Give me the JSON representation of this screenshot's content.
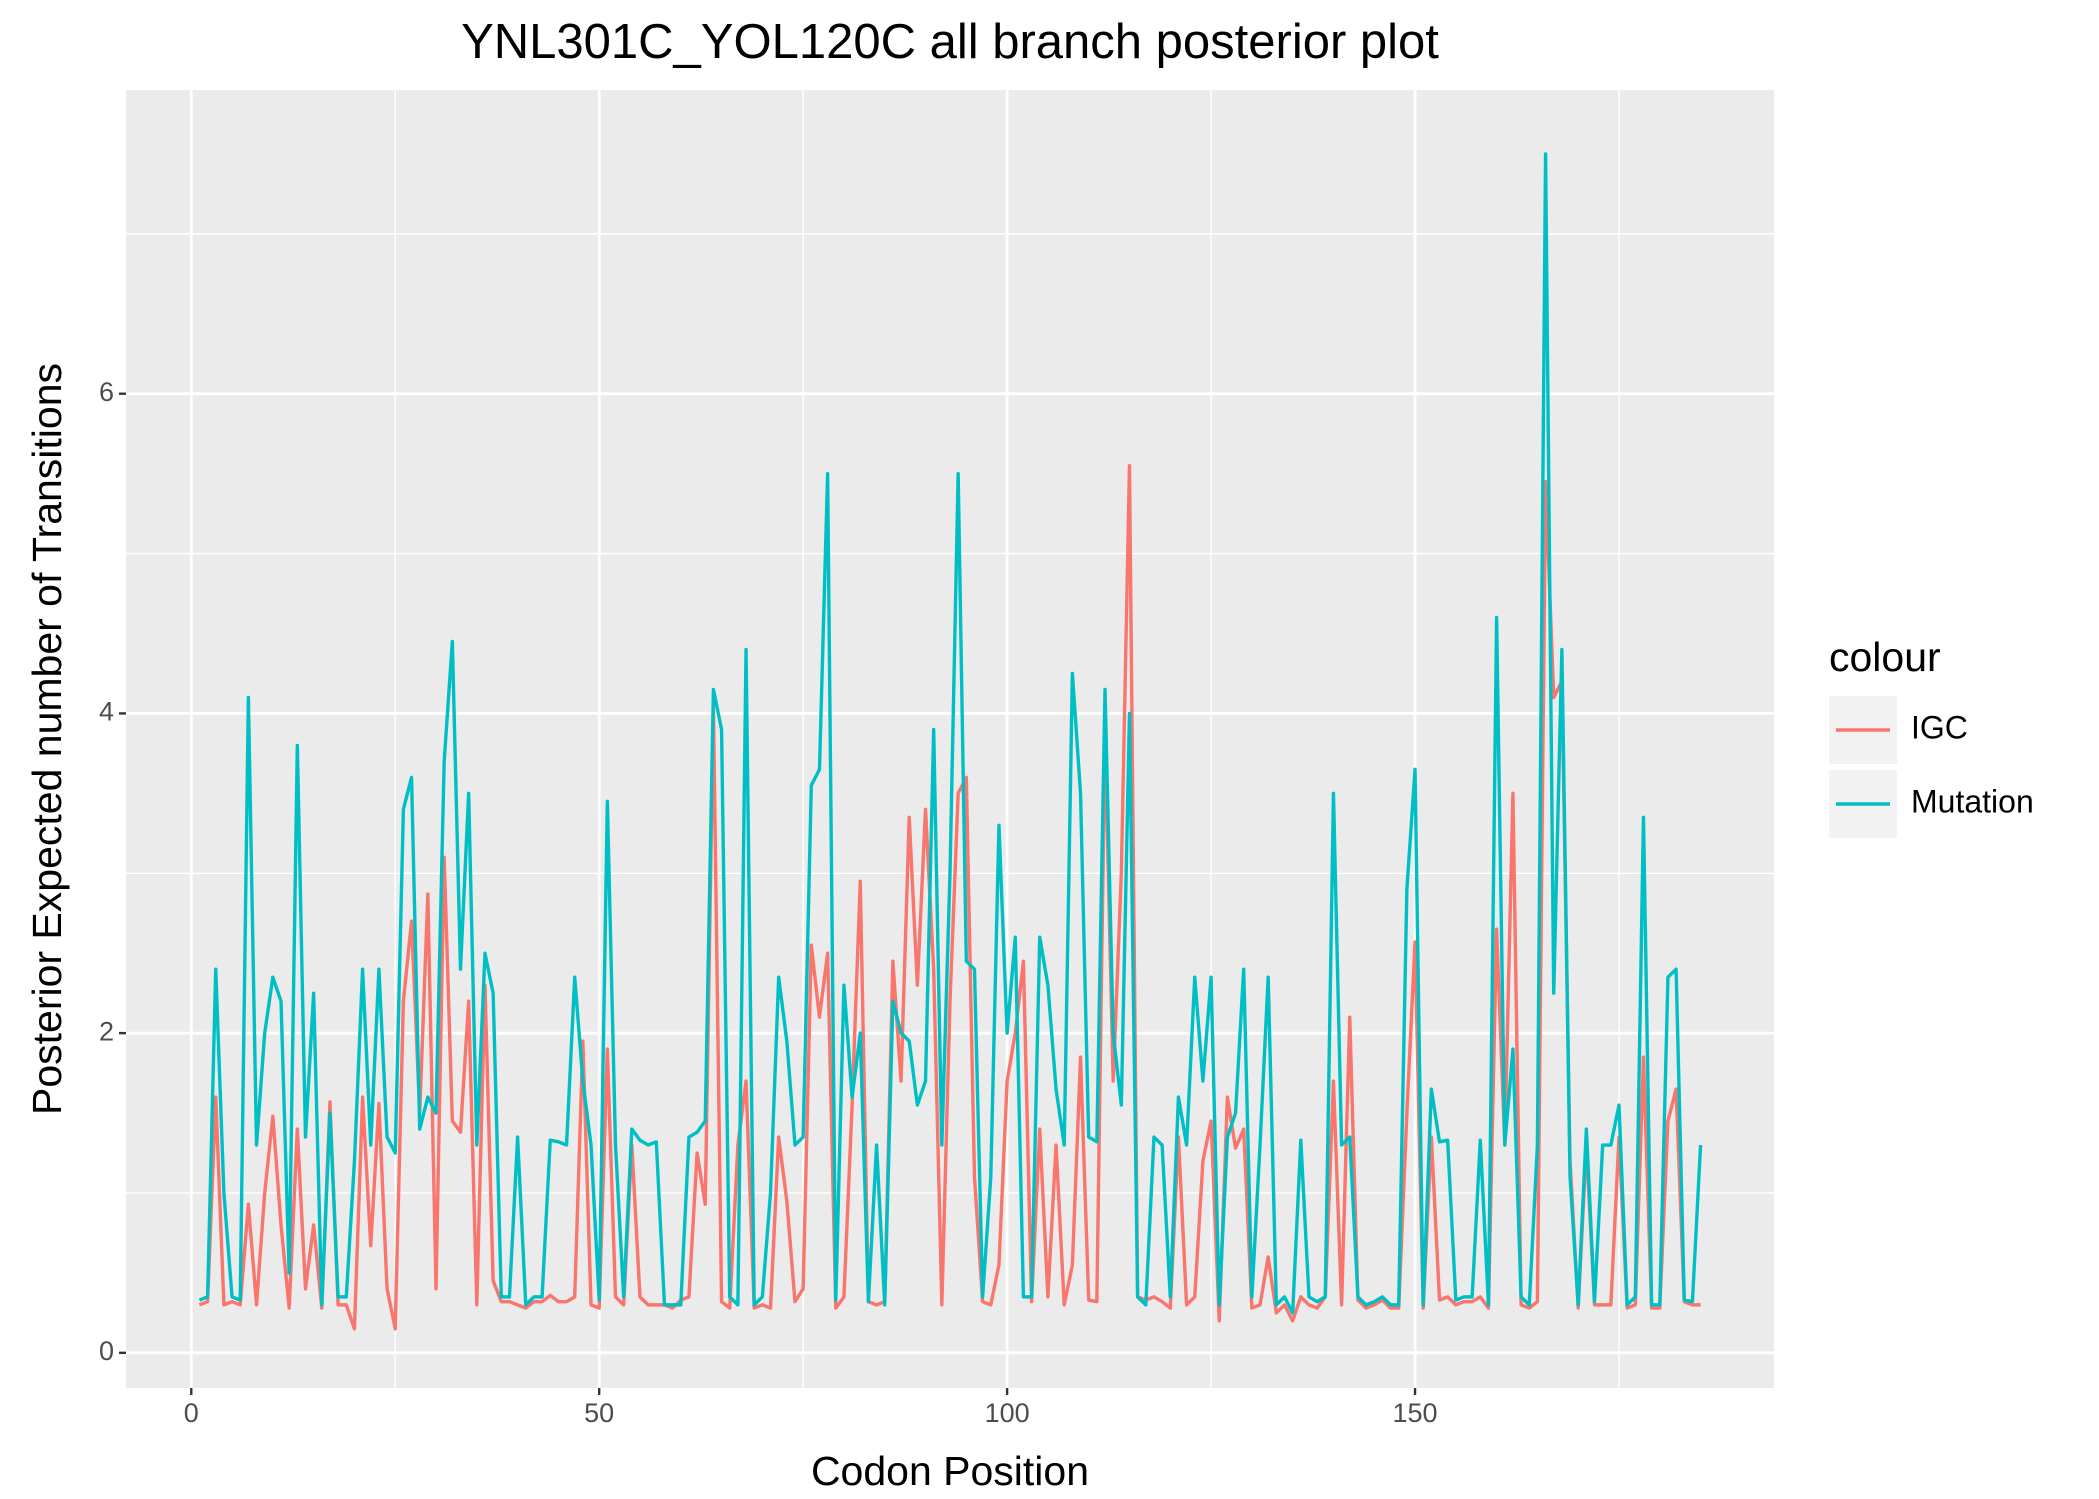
{
  "chart_data": {
    "type": "line",
    "title": "YNL301C_YOL120C all branch posterior plot",
    "x_label": "Codon Position",
    "y_label": "Posterior Expected number of Transitions",
    "legend_title": "colour",
    "legend_position": "right",
    "grid": true,
    "background": "#ebebeb",
    "xlim": [
      -8,
      194
    ],
    "ylim": [
      -0.22,
      7.9
    ],
    "xticks": [
      0,
      50,
      100,
      150
    ],
    "yticks": [
      0,
      2,
      4,
      6
    ],
    "xminorticks": [
      25,
      75,
      125,
      175
    ],
    "yminorticks": [
      1,
      3,
      5,
      7
    ],
    "x": [
      1,
      2,
      3,
      4,
      5,
      6,
      7,
      8,
      9,
      10,
      11,
      12,
      13,
      14,
      15,
      16,
      17,
      18,
      19,
      20,
      21,
      22,
      23,
      24,
      25,
      26,
      27,
      28,
      29,
      30,
      31,
      32,
      33,
      34,
      35,
      36,
      37,
      38,
      39,
      40,
      41,
      42,
      43,
      44,
      45,
      46,
      47,
      48,
      49,
      50,
      51,
      52,
      53,
      54,
      55,
      56,
      57,
      58,
      59,
      60,
      61,
      62,
      63,
      64,
      65,
      66,
      67,
      68,
      69,
      70,
      71,
      72,
      73,
      74,
      75,
      76,
      77,
      78,
      79,
      80,
      81,
      82,
      83,
      84,
      85,
      86,
      87,
      88,
      89,
      90,
      91,
      92,
      93,
      94,
      95,
      96,
      97,
      98,
      99,
      100,
      101,
      102,
      103,
      104,
      105,
      106,
      107,
      108,
      109,
      110,
      111,
      112,
      113,
      114,
      115,
      116,
      117,
      118,
      119,
      120,
      121,
      122,
      123,
      124,
      125,
      126,
      127,
      128,
      129,
      130,
      131,
      132,
      133,
      134,
      135,
      136,
      137,
      138,
      139,
      140,
      141,
      142,
      143,
      144,
      145,
      146,
      147,
      148,
      149,
      150,
      151,
      152,
      153,
      154,
      155,
      156,
      157,
      158,
      159,
      160,
      161,
      162,
      163,
      164,
      165,
      166,
      167,
      168,
      169,
      170,
      171,
      172,
      173,
      174,
      175,
      176,
      177,
      178,
      179,
      180,
      181,
      182,
      183,
      184,
      185
    ],
    "series": [
      {
        "name": "IGC",
        "color": "#F8766D",
        "values": [
          0.3,
          0.32,
          1.6,
          0.3,
          0.32,
          0.3,
          0.93,
          0.3,
          1.0,
          1.48,
          0.8,
          0.28,
          1.4,
          0.4,
          0.8,
          0.28,
          1.57,
          0.3,
          0.3,
          0.15,
          1.6,
          0.67,
          1.56,
          0.4,
          0.15,
          2.2,
          2.7,
          1.5,
          2.87,
          0.4,
          3.1,
          1.45,
          1.38,
          2.2,
          0.3,
          2.3,
          0.45,
          0.32,
          0.32,
          0.3,
          0.28,
          0.32,
          0.32,
          0.36,
          0.32,
          0.32,
          0.35,
          1.95,
          0.3,
          0.28,
          1.9,
          0.35,
          0.3,
          1.3,
          0.35,
          0.3,
          0.3,
          0.3,
          0.28,
          0.33,
          0.35,
          1.25,
          0.93,
          4.05,
          0.32,
          0.28,
          1.3,
          1.7,
          0.28,
          0.3,
          0.28,
          1.35,
          0.95,
          0.32,
          0.4,
          2.55,
          2.1,
          2.5,
          0.28,
          0.35,
          1.55,
          2.95,
          0.32,
          0.3,
          0.32,
          2.45,
          1.7,
          3.35,
          2.3,
          3.4,
          2.4,
          0.3,
          2.2,
          3.5,
          3.6,
          1.1,
          0.32,
          0.3,
          0.55,
          1.7,
          2.0,
          2.45,
          0.32,
          1.4,
          0.35,
          1.3,
          0.3,
          0.55,
          1.85,
          0.33,
          0.32,
          3.9,
          1.7,
          3.0,
          5.55,
          0.35,
          0.33,
          0.35,
          0.32,
          0.28,
          1.35,
          0.3,
          0.35,
          1.2,
          1.45,
          0.2,
          1.6,
          1.28,
          1.4,
          0.28,
          0.3,
          0.6,
          0.25,
          0.3,
          0.2,
          0.35,
          0.3,
          0.28,
          0.35,
          1.7,
          0.3,
          2.1,
          0.33,
          0.28,
          0.3,
          0.33,
          0.28,
          0.28,
          1.5,
          2.57,
          0.28,
          1.35,
          0.33,
          0.35,
          0.3,
          0.32,
          0.32,
          0.35,
          0.28,
          2.65,
          1.3,
          3.5,
          0.3,
          0.28,
          0.32,
          5.45,
          4.1,
          4.2,
          1.2,
          0.28,
          1.3,
          0.3,
          0.3,
          0.3,
          1.35,
          0.28,
          0.3,
          1.85,
          0.28,
          0.28,
          1.45,
          1.65,
          0.32,
          0.3,
          0.3
        ]
      },
      {
        "name": "Mutation",
        "color": "#00BFC4",
        "values": [
          0.33,
          0.35,
          2.4,
          1.0,
          0.35,
          0.33,
          4.1,
          1.3,
          2.0,
          2.35,
          2.2,
          0.5,
          3.8,
          1.35,
          2.25,
          0.3,
          1.5,
          0.35,
          0.35,
          1.2,
          2.4,
          1.3,
          2.4,
          1.35,
          1.25,
          3.4,
          3.6,
          1.4,
          1.6,
          1.5,
          3.7,
          4.45,
          2.4,
          3.5,
          1.3,
          2.5,
          2.25,
          0.35,
          0.35,
          1.35,
          0.3,
          0.35,
          0.35,
          1.33,
          1.32,
          1.3,
          2.35,
          1.7,
          1.3,
          0.33,
          3.45,
          1.3,
          0.35,
          1.4,
          1.33,
          1.3,
          1.32,
          0.3,
          0.3,
          0.3,
          1.35,
          1.38,
          1.45,
          4.15,
          3.9,
          0.35,
          0.3,
          4.4,
          0.3,
          0.35,
          1.0,
          2.35,
          1.95,
          1.3,
          1.35,
          3.55,
          3.65,
          5.5,
          0.33,
          2.3,
          1.6,
          2.0,
          0.32,
          1.3,
          0.3,
          2.2,
          2.0,
          1.95,
          1.55,
          1.7,
          3.9,
          1.3,
          3.0,
          5.5,
          2.45,
          2.4,
          0.35,
          1.1,
          3.3,
          2.0,
          2.6,
          0.35,
          0.35,
          2.6,
          2.3,
          1.65,
          1.3,
          4.25,
          3.5,
          1.35,
          1.32,
          4.15,
          2.0,
          1.55,
          4.0,
          0.35,
          0.3,
          1.35,
          1.3,
          0.35,
          1.6,
          1.3,
          2.35,
          1.7,
          2.35,
          0.3,
          1.35,
          1.5,
          2.4,
          0.35,
          1.3,
          2.35,
          0.3,
          0.35,
          0.25,
          1.33,
          0.35,
          0.32,
          0.35,
          3.5,
          1.3,
          1.35,
          0.35,
          0.3,
          0.32,
          0.35,
          0.3,
          0.3,
          2.9,
          3.65,
          0.3,
          1.65,
          1.32,
          1.33,
          0.33,
          0.35,
          0.35,
          1.33,
          0.3,
          4.6,
          1.3,
          1.9,
          0.35,
          0.3,
          1.3,
          7.5,
          2.25,
          4.4,
          1.1,
          0.3,
          1.4,
          0.32,
          1.3,
          1.3,
          1.55,
          0.3,
          0.35,
          3.35,
          0.3,
          0.3,
          2.35,
          2.4,
          0.33,
          0.32,
          1.3
        ]
      }
    ]
  }
}
